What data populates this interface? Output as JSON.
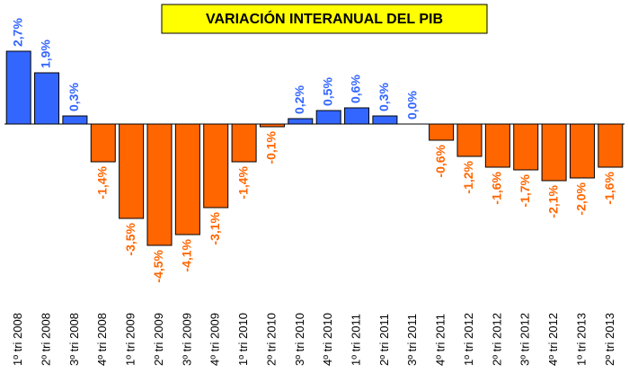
{
  "chart_data": {
    "type": "bar",
    "title": "VARIACIÓN INTERANUAL DEL PIB",
    "categories": [
      "1º tri 2008",
      "2º tri 2008",
      "3º tri 2008",
      "4º tri 2008",
      "1º tri 2009",
      "2º tri 2009",
      "3º tri 2009",
      "4º tri 2009",
      "1º tri 2010",
      "2º tri 2010",
      "3º tri 2010",
      "4º tri 2010",
      "1º tri 2011",
      "2º tri 2011",
      "3º tri 2011",
      "4º tri 2011",
      "1º tri 2012",
      "2º tri 2012",
      "3º tri 2012",
      "4º tri 2012",
      "1º tri 2013",
      "2º tri 2013"
    ],
    "values": [
      2.7,
      1.9,
      0.3,
      -1.4,
      -3.5,
      -4.5,
      -4.1,
      -3.1,
      -1.4,
      -0.1,
      0.2,
      0.5,
      0.6,
      0.3,
      0.0,
      -0.6,
      -1.2,
      -1.6,
      -1.7,
      -2.1,
      -2.0,
      -1.6
    ],
    "value_labels": [
      "2,7%",
      "1,9%",
      "0,3%",
      "-1,4%",
      "-3,5%",
      "-4,5%",
      "-4,1%",
      "-3,1%",
      "-1,4%",
      "-0,1%",
      "0,2%",
      "0,5%",
      "0,6%",
      "0,3%",
      "0,0%",
      "-0,6%",
      "-1,2%",
      "-1,6%",
      "-1,7%",
      "-2,1%",
      "-2,0%",
      "-1,6%"
    ],
    "colors": {
      "positive": "#3366ff",
      "negative": "#ff6600"
    }
  }
}
